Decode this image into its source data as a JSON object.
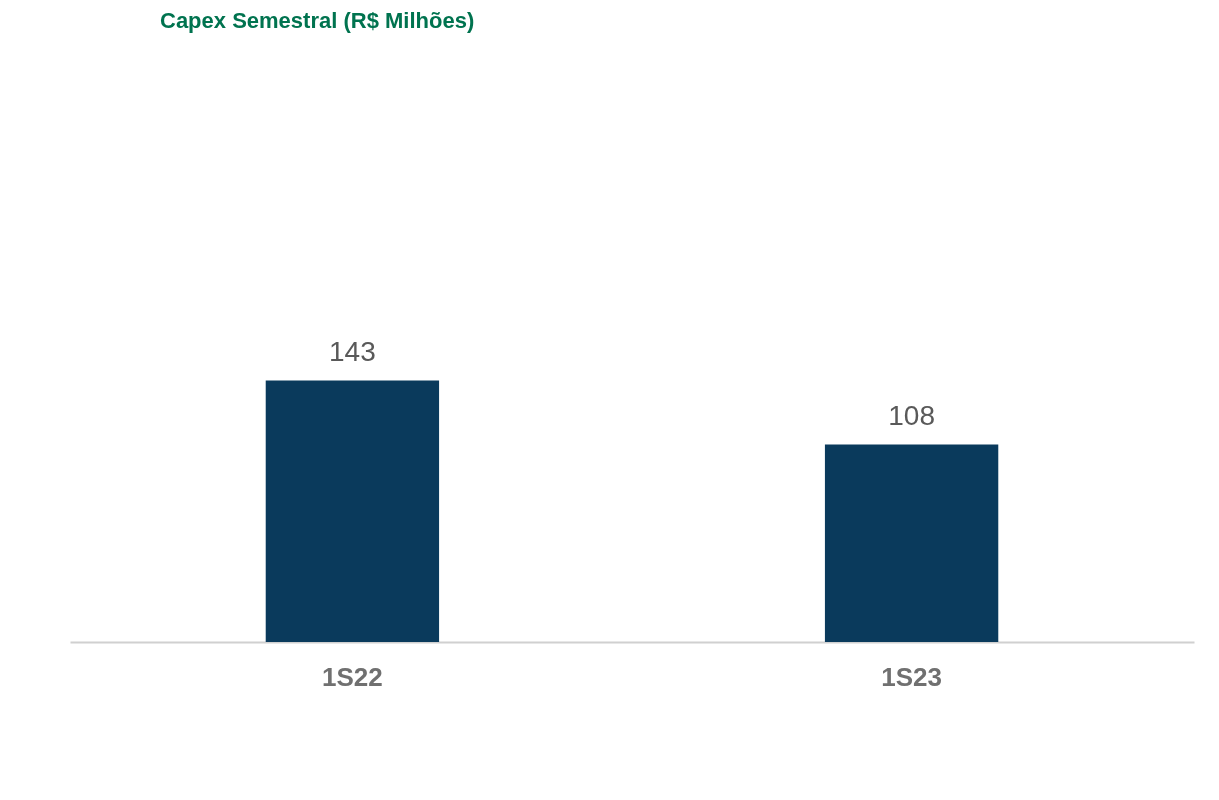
{
  "chart_data": {
    "type": "bar",
    "title": "Capex Semestral (R$ Milhões)",
    "categories": [
      "1S22",
      "1S23"
    ],
    "values": [
      143,
      108
    ],
    "color": "#0a3a5c",
    "data_labels": true,
    "tick_labels": "x"
  }
}
